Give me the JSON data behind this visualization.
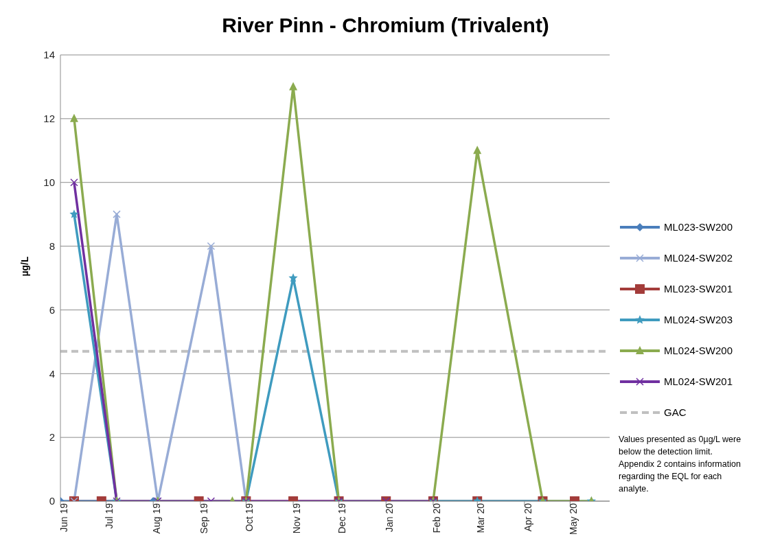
{
  "chart_data": {
    "type": "line",
    "title": "River Pinn - Chromium (Trivalent)",
    "ylabel": "µg/L",
    "xlim": [
      "2019-06-01",
      "2020-05-27"
    ],
    "xticks": [
      {
        "value": "2019-06-01",
        "label": "Jun 19"
      },
      {
        "value": "2019-07-01",
        "label": "Jul 19"
      },
      {
        "value": "2019-08-01",
        "label": "Aug 19"
      },
      {
        "value": "2019-09-01",
        "label": "Sep 19"
      },
      {
        "value": "2019-10-01",
        "label": "Oct 19"
      },
      {
        "value": "2019-11-01",
        "label": "Nov 19"
      },
      {
        "value": "2019-12-01",
        "label": "Dec 19"
      },
      {
        "value": "2020-01-01",
        "label": "Jan 20"
      },
      {
        "value": "2020-02-01",
        "label": "Feb 20"
      },
      {
        "value": "2020-03-01",
        "label": "Mar 20"
      },
      {
        "value": "2020-04-01",
        "label": "Apr 20"
      },
      {
        "value": "2020-05-01",
        "label": "May 20"
      }
    ],
    "ylim": [
      0,
      14
    ],
    "yticks": [
      0,
      2,
      4,
      6,
      8,
      10,
      12,
      14
    ],
    "grid": "y",
    "legend": "right",
    "series": [
      {
        "name": "ML023-SW200",
        "color": "#4a7ebb",
        "marker": "diamond",
        "x": [
          "2019-06-01",
          "2019-08-01"
        ],
        "values": [
          0,
          0
        ]
      },
      {
        "name": "ML024-SW202",
        "color": "#98acd6",
        "marker": "cross",
        "x": [
          "2019-06-10",
          "2019-07-08",
          "2019-08-04",
          "2019-09-08",
          "2019-10-01"
        ],
        "values": [
          0,
          9,
          0,
          8,
          0
        ]
      },
      {
        "name": "ML023-SW201",
        "color": "#a33c3a",
        "marker": "square",
        "x": [
          "2019-06-10",
          "2019-06-28",
          "2019-08-31",
          "2019-10-01",
          "2019-11-01",
          "2019-12-01",
          "2020-01-01",
          "2020-02-01",
          "2020-03-01",
          "2020-04-13",
          "2020-05-04"
        ],
        "values": [
          0,
          0,
          0,
          0,
          0,
          0,
          0,
          0,
          0,
          0,
          0
        ]
      },
      {
        "name": "ML024-SW203",
        "color": "#3f9bbf",
        "marker": "star",
        "x": [
          "2019-06-10",
          "2019-07-08",
          "2019-10-01",
          "2019-11-01",
          "2019-12-01",
          "2020-02-01",
          "2020-03-01",
          "2020-04-13",
          "2020-05-15"
        ],
        "values": [
          9,
          0,
          0,
          7,
          0,
          0,
          0,
          0,
          0
        ]
      },
      {
        "name": "ML024-SW200",
        "color": "#8bab4f",
        "marker": "triangle",
        "x": [
          "2019-06-10",
          "2019-07-08",
          "2019-08-04",
          "2019-09-22",
          "2019-10-01",
          "2019-11-01",
          "2019-12-01",
          "2020-02-01",
          "2020-03-01",
          "2020-04-13",
          "2020-05-15"
        ],
        "values": [
          12,
          0,
          0,
          0,
          0,
          13,
          0,
          0,
          11,
          0,
          0
        ]
      },
      {
        "name": "ML024-SW201",
        "color": "#7030a0",
        "marker": "cross",
        "x": [
          "2019-06-10",
          "2019-07-08",
          "2019-08-04",
          "2019-09-08",
          "2019-10-01",
          "2019-12-01",
          "2020-01-01",
          "2020-02-01"
        ],
        "values": [
          10,
          0,
          0,
          0,
          0,
          0,
          0,
          0
        ]
      }
    ],
    "ref_lines": [
      {
        "axis": "y",
        "value": 4.7,
        "label": "GAC",
        "color": "#c0c0c0",
        "line_style": "dashed"
      }
    ],
    "annotations": [
      "Values presented as 0µg/L were below the detection limit. Appendix 2 contains information regarding the EQL for each analyte."
    ]
  }
}
